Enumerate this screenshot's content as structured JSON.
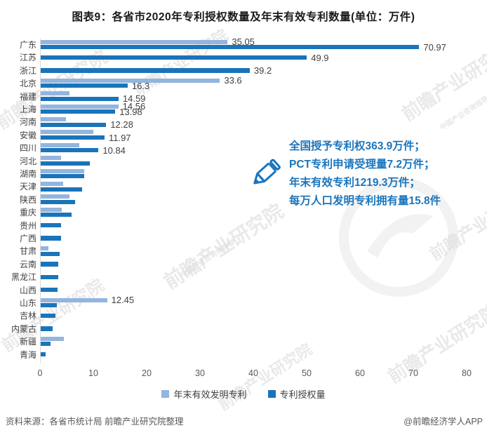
{
  "title": "图表9：各省市2020年专利授权数量及年末有效专利数量(单位：万件)",
  "colors": {
    "light_series": "#93b5de",
    "dark_series": "#1a74ba",
    "annotation_blue": "#1b75bc",
    "value_label": "#404040",
    "axis_text": "#595959",
    "watermark_gray": "#d4d4d4"
  },
  "chart_data": {
    "type": "bar",
    "orientation": "horizontal",
    "title": "图表9：各省市2020年专利授权数量及年末有效专利数量(单位：万件)",
    "unit": "万件",
    "categories": [
      "广东",
      "江苏",
      "浙江",
      "北京",
      "福建",
      "上海",
      "河南",
      "安徽",
      "四川",
      "河北",
      "湖南",
      "天津",
      "陕西",
      "重庆",
      "贵州",
      "广西",
      "甘肃",
      "云南",
      "黑龙江",
      "山西",
      "山东",
      "吉林",
      "内蒙古",
      "新疆",
      "青海"
    ],
    "series": [
      {
        "name": "年末有效发明专利",
        "color": "#93b5de",
        "values": [
          35.05,
          null,
          null,
          33.6,
          5.4,
          14.56,
          4.8,
          9.9,
          7.2,
          3.8,
          8.2,
          4.2,
          5.4,
          3.9,
          null,
          null,
          1.4,
          null,
          null,
          null,
          12.45,
          null,
          null,
          4.4,
          null
        ],
        "labels": [
          "35.05",
          null,
          null,
          "33.6",
          null,
          "14.56",
          null,
          null,
          null,
          null,
          null,
          null,
          null,
          null,
          null,
          null,
          null,
          null,
          null,
          null,
          "12.45",
          null,
          null,
          null,
          null
        ]
      },
      {
        "name": "专利授权量",
        "color": "#1a74ba",
        "values": [
          70.97,
          49.9,
          39.2,
          16.3,
          14.59,
          13.98,
          12.28,
          11.97,
          10.84,
          9.2,
          8.2,
          7.7,
          6.5,
          5.8,
          3.8,
          3.8,
          3.5,
          3.3,
          3.3,
          3.2,
          3.0,
          2.8,
          2.3,
          1.8,
          0.9
        ],
        "labels": [
          "70.97",
          "49.9",
          "39.2",
          "16.3",
          "14.59",
          "13.98",
          "12.28",
          "11.97",
          "10.84",
          null,
          null,
          null,
          null,
          null,
          null,
          null,
          null,
          null,
          null,
          null,
          null,
          null,
          null,
          null,
          null
        ]
      }
    ],
    "xlim": [
      0,
      80
    ],
    "xticks": [
      0,
      10,
      20,
      30,
      40,
      50,
      60,
      70,
      80
    ],
    "grid": false,
    "legend_position": "bottom"
  },
  "annotation": {
    "lines": [
      "全国授予专利权363.9万件；",
      "PCT专利申请受理量7.2万件；",
      "年末有效专利1219.3万件；",
      "每万人口发明专利拥有量15.8件"
    ]
  },
  "legend": {
    "items": [
      {
        "label": "年末有效发明专利",
        "color": "#93b5de"
      },
      {
        "label": "专利授权量",
        "color": "#1a74ba"
      }
    ]
  },
  "footer": {
    "source": "资料来源：各省市统计局 前瞻产业研究院整理",
    "credit": "@前瞻经济学人APP"
  },
  "watermark": {
    "text": "前瞻产业研究院",
    "subtext": "中国产业咨询领导者"
  }
}
